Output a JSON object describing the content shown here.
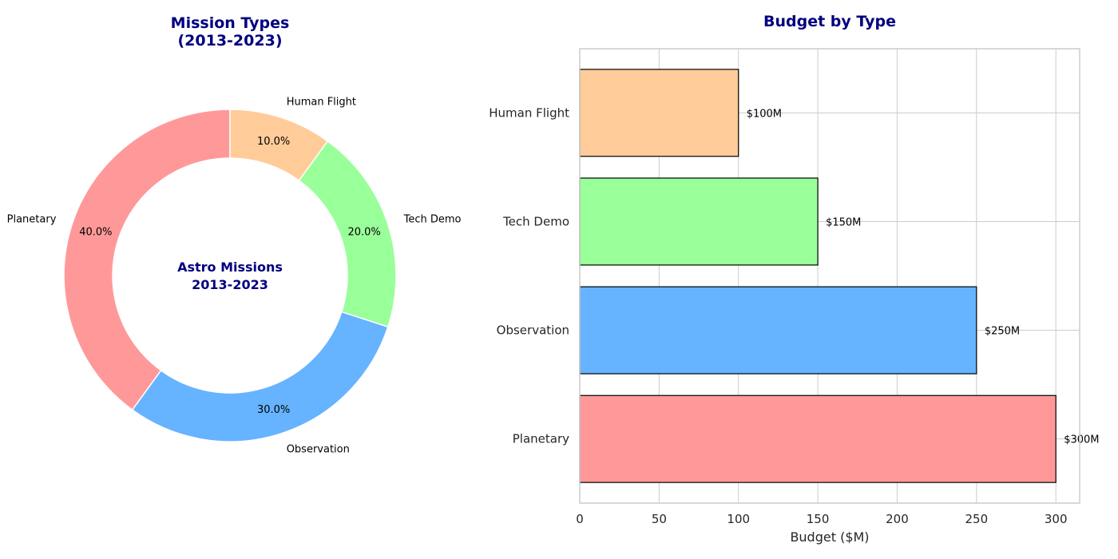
{
  "chart_data": [
    {
      "type": "pie",
      "title": "Mission Types\n(2013-2023)",
      "title_lines": [
        "Mission Types",
        "(2013-2023)"
      ],
      "center_text_lines": [
        "Astro Missions",
        "2013-2023"
      ],
      "donut": true,
      "start_angle_deg": 90,
      "direction": "counterclockwise",
      "slices": [
        {
          "label": "Planetary",
          "value": 40.0,
          "pct_label": "40.0%",
          "color": "#ff9999"
        },
        {
          "label": "Observation",
          "value": 30.0,
          "pct_label": "30.0%",
          "color": "#66b3ff"
        },
        {
          "label": "Tech Demo",
          "value": 20.0,
          "pct_label": "20.0%",
          "color": "#99ff99"
        },
        {
          "label": "Human Flight",
          "value": 10.0,
          "pct_label": "10.0%",
          "color": "#ffcc99"
        }
      ]
    },
    {
      "type": "bar",
      "orientation": "horizontal",
      "title": "Budget by Type",
      "xlabel": "Budget ($M)",
      "ylabel": "",
      "categories": [
        "Planetary",
        "Observation",
        "Tech Demo",
        "Human Flight"
      ],
      "values": [
        300,
        250,
        150,
        100
      ],
      "value_labels": [
        "$300M",
        "$250M",
        "$150M",
        "$100M"
      ],
      "colors": [
        "#ff9999",
        "#66b3ff",
        "#99ff99",
        "#ffcc99"
      ],
      "xlim": [
        0,
        315
      ],
      "xticks": [
        0,
        50,
        100,
        150,
        200,
        250,
        300
      ],
      "xtick_labels": [
        "0",
        "50",
        "100",
        "150",
        "200",
        "250",
        "300"
      ],
      "grid": true
    }
  ]
}
